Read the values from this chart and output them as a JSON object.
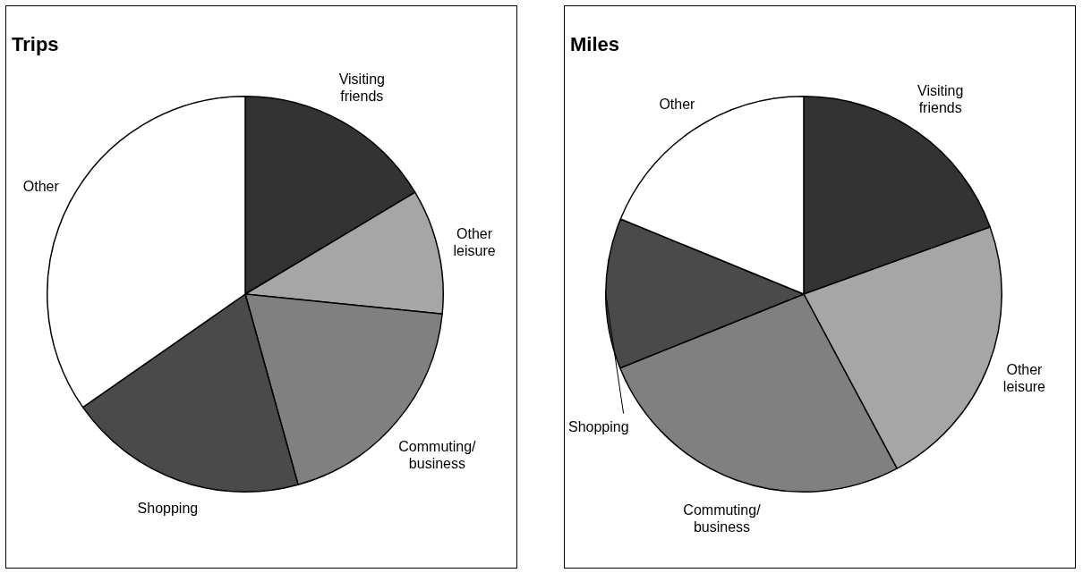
{
  "chart_data": [
    {
      "type": "pie",
      "title": "Trips",
      "categories": [
        "Visiting friends",
        "Other leisure",
        "Commuting/ business",
        "Shopping",
        "Other"
      ],
      "values": [
        16.4,
        10.2,
        19.1,
        19.6,
        34.7
      ],
      "colors": [
        "#333333",
        "#a6a6a6",
        "#808080",
        "#4a4a4a",
        "#ffffff"
      ]
    },
    {
      "type": "pie",
      "title": "Miles",
      "categories": [
        "Visiting friends",
        "Other leisure",
        "Commuting/ business",
        "Shopping",
        "Other"
      ],
      "values": [
        19.5,
        22.7,
        26.7,
        12.3,
        18.8
      ],
      "colors": [
        "#333333",
        "#a6a6a6",
        "#808080",
        "#4a4a4a",
        "#ffffff"
      ]
    }
  ]
}
